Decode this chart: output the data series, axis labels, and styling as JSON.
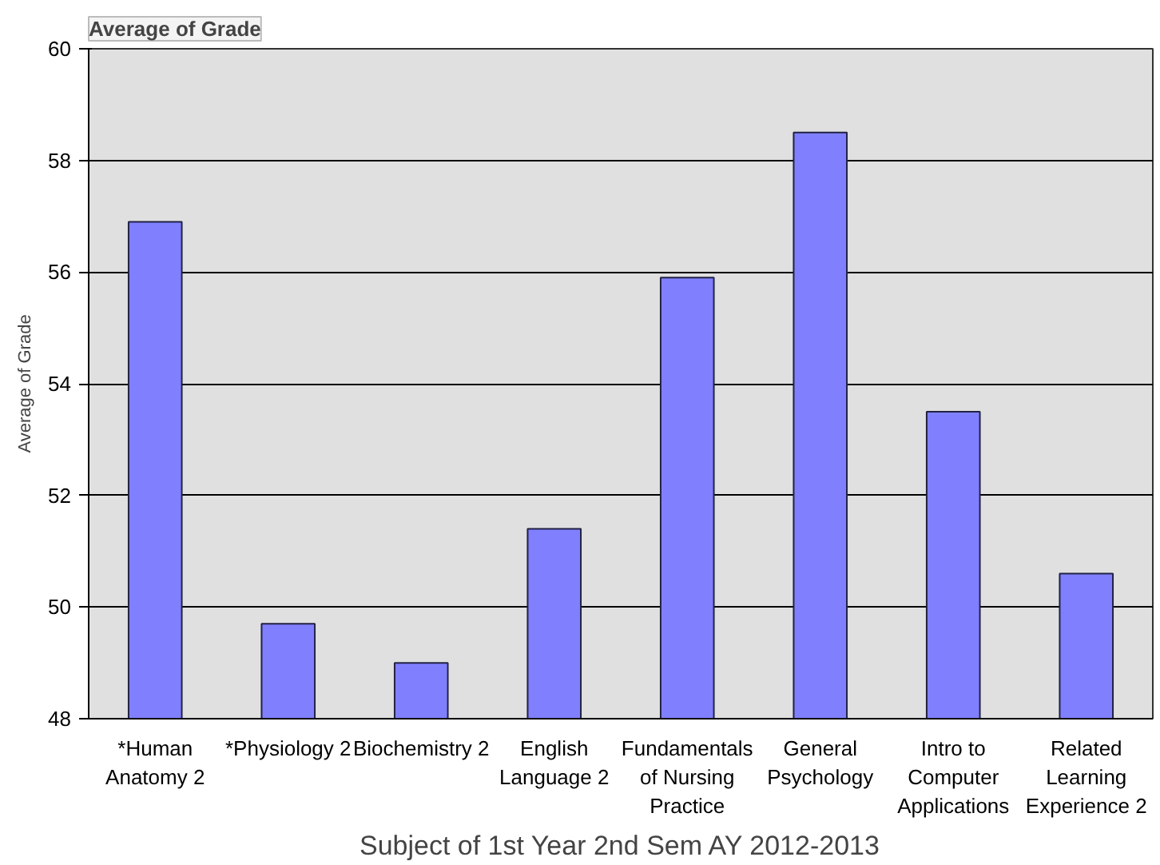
{
  "chart_data": {
    "type": "bar",
    "xlabel": "Subject of 1st Year 2nd Sem AY 2012-2013",
    "ylabel": "Average of Grade",
    "annotations": [
      "Average of Grade"
    ],
    "categories": [
      "*Human Anatomy 2",
      "*Physiology 2",
      "Biochemistry 2",
      "English Language 2",
      "Fundamentals of Nursing Practice",
      "General Psychology",
      "Intro to Computer Applications",
      "Related Learning Experience 2"
    ],
    "values": [
      56.9,
      49.7,
      49.0,
      51.4,
      55.9,
      58.5,
      53.5,
      50.6
    ],
    "color": "#8080ff",
    "ylim": [
      48,
      60
    ],
    "yticks": [
      48,
      50,
      52,
      54,
      56,
      58,
      60
    ],
    "grid": "y"
  }
}
